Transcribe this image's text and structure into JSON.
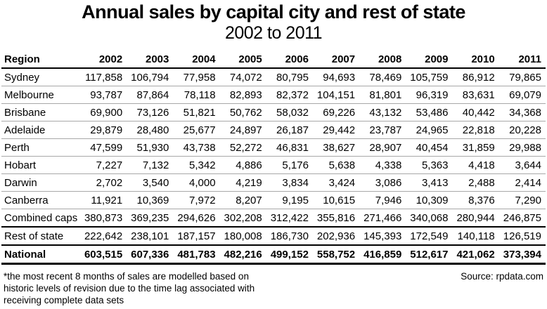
{
  "title": "Annual sales by capital city and rest of state",
  "subtitle": "2002 to 2011",
  "table": {
    "region_header": "Region",
    "years": [
      "2002",
      "2003",
      "2004",
      "2005",
      "2006",
      "2007",
      "2008",
      "2009",
      "2010",
      "2011"
    ],
    "rows": [
      {
        "region": "Sydney",
        "type": "city",
        "values": [
          "117,858",
          "106,794",
          "77,958",
          "74,072",
          "80,795",
          "94,693",
          "78,469",
          "105,759",
          "86,912",
          "79,865"
        ]
      },
      {
        "region": "Melbourne",
        "type": "city",
        "values": [
          "93,787",
          "87,864",
          "78,118",
          "82,893",
          "82,372",
          "104,151",
          "81,801",
          "96,319",
          "83,631",
          "69,079"
        ]
      },
      {
        "region": "Brisbane",
        "type": "city",
        "values": [
          "69,900",
          "73,126",
          "51,821",
          "50,762",
          "58,032",
          "69,226",
          "43,132",
          "53,486",
          "40,442",
          "34,368"
        ]
      },
      {
        "region": "Adelaide",
        "type": "city",
        "values": [
          "29,879",
          "28,480",
          "25,677",
          "24,897",
          "26,187",
          "29,442",
          "23,787",
          "24,965",
          "22,818",
          "20,228"
        ]
      },
      {
        "region": "Perth",
        "type": "city",
        "values": [
          "47,599",
          "51,930",
          "43,738",
          "52,272",
          "46,831",
          "38,627",
          "28,907",
          "40,454",
          "31,859",
          "29,988"
        ]
      },
      {
        "region": "Hobart",
        "type": "city",
        "values": [
          "7,227",
          "7,132",
          "5,342",
          "4,886",
          "5,176",
          "5,638",
          "4,338",
          "5,363",
          "4,418",
          "3,644"
        ]
      },
      {
        "region": "Darwin",
        "type": "city",
        "values": [
          "2,702",
          "3,540",
          "4,000",
          "4,219",
          "3,834",
          "3,424",
          "3,086",
          "3,413",
          "2,488",
          "2,414"
        ]
      },
      {
        "region": "Canberra",
        "type": "city",
        "values": [
          "11,921",
          "10,369",
          "7,972",
          "8,207",
          "9,195",
          "10,615",
          "7,946",
          "10,309",
          "8,376",
          "7,290"
        ]
      },
      {
        "region": "Combined caps",
        "type": "caps",
        "values": [
          "380,873",
          "369,235",
          "294,626",
          "302,208",
          "312,422",
          "355,816",
          "271,466",
          "340,068",
          "280,944",
          "246,875"
        ]
      },
      {
        "region": "Rest of state",
        "type": "rest",
        "values": [
          "222,642",
          "238,101",
          "187,157",
          "180,008",
          "186,730",
          "202,936",
          "145,393",
          "172,549",
          "140,118",
          "126,519"
        ]
      },
      {
        "region": "National",
        "type": "national",
        "values": [
          "603,515",
          "607,336",
          "481,783",
          "482,216",
          "499,152",
          "558,752",
          "416,859",
          "512,617",
          "421,062",
          "373,394"
        ]
      }
    ]
  },
  "footnote_lines": [
    "*the most recent 8 months of sales are modelled based on",
    "historic levels of revision due to the time lag associated with",
    "receiving complete data sets"
  ],
  "source": "Source: rpdata.com",
  "colors": {
    "text": "#000000",
    "background": "#ffffff",
    "row_divider": "#a8a8a8",
    "strong_divider": "#000000"
  },
  "chart_data": {
    "type": "table",
    "title": "Annual sales by capital city and rest of state",
    "subtitle": "2002 to 2011",
    "categories": [
      "2002",
      "2003",
      "2004",
      "2005",
      "2006",
      "2007",
      "2008",
      "2009",
      "2010",
      "2011"
    ],
    "series": [
      {
        "name": "Sydney",
        "values": [
          117858,
          106794,
          77958,
          74072,
          80795,
          94693,
          78469,
          105759,
          86912,
          79865
        ]
      },
      {
        "name": "Melbourne",
        "values": [
          93787,
          87864,
          78118,
          82893,
          82372,
          104151,
          81801,
          96319,
          83631,
          69079
        ]
      },
      {
        "name": "Brisbane",
        "values": [
          69900,
          73126,
          51821,
          50762,
          58032,
          69226,
          43132,
          53486,
          40442,
          34368
        ]
      },
      {
        "name": "Adelaide",
        "values": [
          29879,
          28480,
          25677,
          24897,
          26187,
          29442,
          23787,
          24965,
          22818,
          20228
        ]
      },
      {
        "name": "Perth",
        "values": [
          47599,
          51930,
          43738,
          52272,
          46831,
          38627,
          28907,
          40454,
          31859,
          29988
        ]
      },
      {
        "name": "Hobart",
        "values": [
          7227,
          7132,
          5342,
          4886,
          5176,
          5638,
          4338,
          5363,
          4418,
          3644
        ]
      },
      {
        "name": "Darwin",
        "values": [
          2702,
          3540,
          4000,
          4219,
          3834,
          3424,
          3086,
          3413,
          2488,
          2414
        ]
      },
      {
        "name": "Canberra",
        "values": [
          11921,
          10369,
          7972,
          8207,
          9195,
          10615,
          7946,
          10309,
          8376,
          7290
        ]
      },
      {
        "name": "Combined caps",
        "values": [
          380873,
          369235,
          294626,
          302208,
          312422,
          355816,
          271466,
          340068,
          280944,
          246875
        ]
      },
      {
        "name": "Rest of state",
        "values": [
          222642,
          238101,
          187157,
          180008,
          186730,
          202936,
          145393,
          172549,
          140118,
          126519
        ]
      },
      {
        "name": "National",
        "values": [
          603515,
          607336,
          481783,
          482216,
          499152,
          558752,
          416859,
          512617,
          421062,
          373394
        ]
      }
    ]
  }
}
